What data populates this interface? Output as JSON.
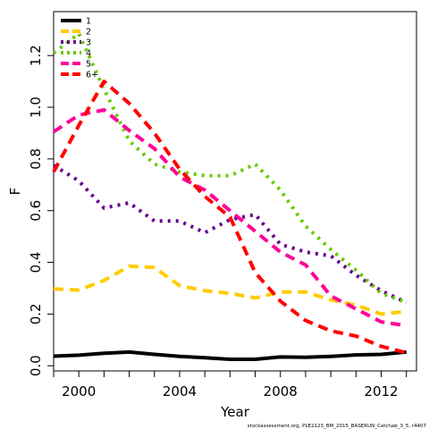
{
  "chart_data": {
    "type": "line",
    "title": "",
    "xlabel": "Year",
    "ylabel": "F",
    "xlim": [
      1999,
      2013.4
    ],
    "ylim": [
      -0.02,
      1.37
    ],
    "grid": false,
    "legend_position": "top-left",
    "x_ticks": [
      2000,
      2004,
      2008,
      2012
    ],
    "y_ticks": [
      0.0,
      0.2,
      0.4,
      0.6,
      0.8,
      1.0,
      1.2
    ],
    "y_tick_labels": [
      "0.0",
      "0.2",
      "0.4",
      "0.6",
      "0.8",
      "1.0",
      "1.2"
    ],
    "x": [
      1999,
      2000,
      2001,
      2002,
      2003,
      2004,
      2005,
      2006,
      2007,
      2008,
      2009,
      2010,
      2011,
      2012,
      2013
    ],
    "series": [
      {
        "name": "1",
        "color": "#000000",
        "dash": "solid",
        "values": [
          0.037,
          0.041,
          0.048,
          0.053,
          0.044,
          0.036,
          0.031,
          0.025,
          0.025,
          0.034,
          0.033,
          0.036,
          0.042,
          0.044,
          0.053
        ]
      },
      {
        "name": "2",
        "color": "#FFCC00",
        "dash": "dashed",
        "values": [
          0.297,
          0.293,
          0.33,
          0.385,
          0.38,
          0.31,
          0.29,
          0.28,
          0.262,
          0.285,
          0.285,
          0.255,
          0.235,
          0.2,
          0.21
        ]
      },
      {
        "name": "3",
        "color": "#66008E",
        "dash": "dotted",
        "values": [
          0.775,
          0.715,
          0.61,
          0.63,
          0.56,
          0.56,
          0.515,
          0.565,
          0.585,
          0.47,
          0.44,
          0.425,
          0.35,
          0.29,
          0.245
        ]
      },
      {
        "name": "4",
        "color": "#66CC00",
        "dash": "dotted",
        "values": [
          1.21,
          1.285,
          1.07,
          0.87,
          0.78,
          0.75,
          0.735,
          0.735,
          0.78,
          0.68,
          0.54,
          0.45,
          0.37,
          0.28,
          0.245
        ]
      },
      {
        "name": "5",
        "color": "#FF0099",
        "dash": "dashed",
        "values": [
          0.905,
          0.97,
          0.99,
          0.91,
          0.84,
          0.73,
          0.68,
          0.6,
          0.52,
          0.44,
          0.39,
          0.27,
          0.22,
          0.17,
          0.155
        ]
      },
      {
        "name": "6+",
        "color": "#FF0000",
        "dash": "dashed",
        "values": [
          0.75,
          0.93,
          1.1,
          1.015,
          0.9,
          0.76,
          0.655,
          0.575,
          0.36,
          0.25,
          0.175,
          0.135,
          0.115,
          0.075,
          0.05
        ]
      }
    ]
  },
  "credit_text": "stockassessment.org, PLE2123_BM_2015_BASERUN_Catchab_3_5, r4407"
}
